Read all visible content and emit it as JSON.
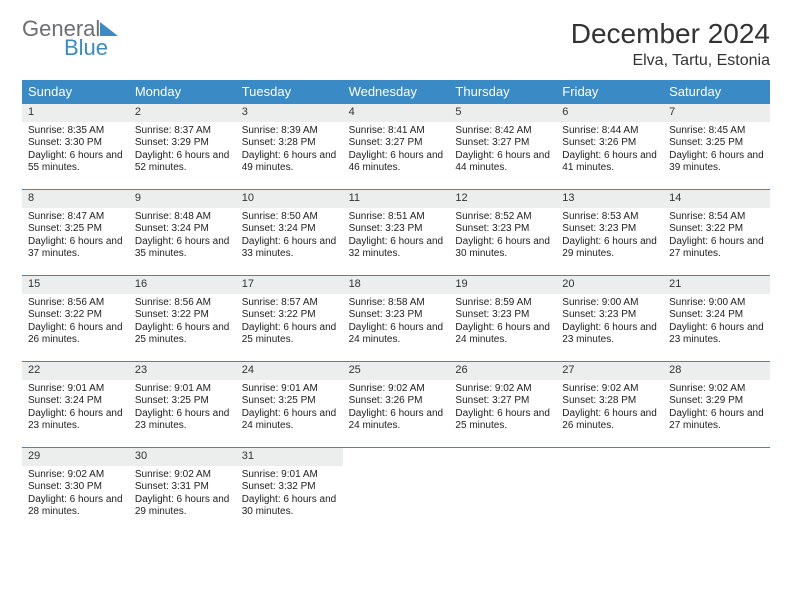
{
  "logo": {
    "general": "General",
    "blue": "Blue"
  },
  "title": "December 2024",
  "location": "Elva, Tartu, Estonia",
  "weekdays": [
    "Sunday",
    "Monday",
    "Tuesday",
    "Wednesday",
    "Thursday",
    "Friday",
    "Saturday"
  ],
  "styling": {
    "header_color": "#3a8ac5",
    "header_text_color": "#ffffff",
    "daynum_bg": "#eceded",
    "cell_border": "#3a8ac5",
    "title_fontsize": 28,
    "location_fontsize": 16,
    "weekday_fontsize": 13,
    "body_fontsize": 10,
    "daynum_fontsize": 11,
    "page_bg": "#ffffff",
    "text_color": "#222222"
  },
  "days": [
    {
      "n": 1,
      "sunrise": "8:35 AM",
      "sunset": "3:30 PM",
      "daylight": "6 hours and 55 minutes."
    },
    {
      "n": 2,
      "sunrise": "8:37 AM",
      "sunset": "3:29 PM",
      "daylight": "6 hours and 52 minutes."
    },
    {
      "n": 3,
      "sunrise": "8:39 AM",
      "sunset": "3:28 PM",
      "daylight": "6 hours and 49 minutes."
    },
    {
      "n": 4,
      "sunrise": "8:41 AM",
      "sunset": "3:27 PM",
      "daylight": "6 hours and 46 minutes."
    },
    {
      "n": 5,
      "sunrise": "8:42 AM",
      "sunset": "3:27 PM",
      "daylight": "6 hours and 44 minutes."
    },
    {
      "n": 6,
      "sunrise": "8:44 AM",
      "sunset": "3:26 PM",
      "daylight": "6 hours and 41 minutes."
    },
    {
      "n": 7,
      "sunrise": "8:45 AM",
      "sunset": "3:25 PM",
      "daylight": "6 hours and 39 minutes."
    },
    {
      "n": 8,
      "sunrise": "8:47 AM",
      "sunset": "3:25 PM",
      "daylight": "6 hours and 37 minutes."
    },
    {
      "n": 9,
      "sunrise": "8:48 AM",
      "sunset": "3:24 PM",
      "daylight": "6 hours and 35 minutes."
    },
    {
      "n": 10,
      "sunrise": "8:50 AM",
      "sunset": "3:24 PM",
      "daylight": "6 hours and 33 minutes."
    },
    {
      "n": 11,
      "sunrise": "8:51 AM",
      "sunset": "3:23 PM",
      "daylight": "6 hours and 32 minutes."
    },
    {
      "n": 12,
      "sunrise": "8:52 AM",
      "sunset": "3:23 PM",
      "daylight": "6 hours and 30 minutes."
    },
    {
      "n": 13,
      "sunrise": "8:53 AM",
      "sunset": "3:23 PM",
      "daylight": "6 hours and 29 minutes."
    },
    {
      "n": 14,
      "sunrise": "8:54 AM",
      "sunset": "3:22 PM",
      "daylight": "6 hours and 27 minutes."
    },
    {
      "n": 15,
      "sunrise": "8:56 AM",
      "sunset": "3:22 PM",
      "daylight": "6 hours and 26 minutes."
    },
    {
      "n": 16,
      "sunrise": "8:56 AM",
      "sunset": "3:22 PM",
      "daylight": "6 hours and 25 minutes."
    },
    {
      "n": 17,
      "sunrise": "8:57 AM",
      "sunset": "3:22 PM",
      "daylight": "6 hours and 25 minutes."
    },
    {
      "n": 18,
      "sunrise": "8:58 AM",
      "sunset": "3:23 PM",
      "daylight": "6 hours and 24 minutes."
    },
    {
      "n": 19,
      "sunrise": "8:59 AM",
      "sunset": "3:23 PM",
      "daylight": "6 hours and 24 minutes."
    },
    {
      "n": 20,
      "sunrise": "9:00 AM",
      "sunset": "3:23 PM",
      "daylight": "6 hours and 23 minutes."
    },
    {
      "n": 21,
      "sunrise": "9:00 AM",
      "sunset": "3:24 PM",
      "daylight": "6 hours and 23 minutes."
    },
    {
      "n": 22,
      "sunrise": "9:01 AM",
      "sunset": "3:24 PM",
      "daylight": "6 hours and 23 minutes."
    },
    {
      "n": 23,
      "sunrise": "9:01 AM",
      "sunset": "3:25 PM",
      "daylight": "6 hours and 23 minutes."
    },
    {
      "n": 24,
      "sunrise": "9:01 AM",
      "sunset": "3:25 PM",
      "daylight": "6 hours and 24 minutes."
    },
    {
      "n": 25,
      "sunrise": "9:02 AM",
      "sunset": "3:26 PM",
      "daylight": "6 hours and 24 minutes."
    },
    {
      "n": 26,
      "sunrise": "9:02 AM",
      "sunset": "3:27 PM",
      "daylight": "6 hours and 25 minutes."
    },
    {
      "n": 27,
      "sunrise": "9:02 AM",
      "sunset": "3:28 PM",
      "daylight": "6 hours and 26 minutes."
    },
    {
      "n": 28,
      "sunrise": "9:02 AM",
      "sunset": "3:29 PM",
      "daylight": "6 hours and 27 minutes."
    },
    {
      "n": 29,
      "sunrise": "9:02 AM",
      "sunset": "3:30 PM",
      "daylight": "6 hours and 28 minutes."
    },
    {
      "n": 30,
      "sunrise": "9:02 AM",
      "sunset": "3:31 PM",
      "daylight": "6 hours and 29 minutes."
    },
    {
      "n": 31,
      "sunrise": "9:01 AM",
      "sunset": "3:32 PM",
      "daylight": "6 hours and 30 minutes."
    }
  ],
  "labels": {
    "sunrise": "Sunrise: ",
    "sunset": "Sunset: ",
    "daylight": "Daylight: "
  }
}
